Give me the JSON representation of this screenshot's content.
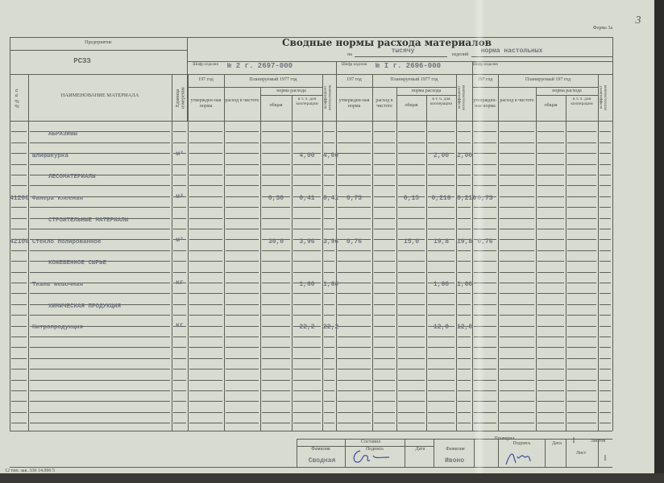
{
  "form_label": "Форма 3а",
  "page_mark": "3",
  "enterprise_label": "Предприятие",
  "enterprise": "РСЗЗ",
  "title": "Сводные нормы расхода материалов",
  "per_label": "на",
  "per_value": "тысячу",
  "items_label": "изделий",
  "items_value": "норма настольных",
  "code_label": "Шифр изделия",
  "blocks": [
    {
      "code": "№ 2 г. 2697-000",
      "year_label": "197  год",
      "plan_label": "Планируемый 1977 год"
    },
    {
      "code": "№ I г. 2696-000",
      "year_label": "197  год",
      "plan_label": "Планируемый 1977 год"
    },
    {
      "code": "",
      "year_label": "197  год",
      "plan_label": "Планируемый 197  год"
    }
  ],
  "col_headers": {
    "num": "№№ п. п.",
    "name": "НАИМЕНОВАНИЕ МАТЕРИАЛА",
    "unit": "Единица измерения",
    "approved": "утвержден-ная норма",
    "net": "расход в чистоте",
    "norm": "норма расхода",
    "total": "общая",
    "incl": "в т. ч. для кооперации",
    "coef": "коэффициент использования"
  },
  "rows": [
    {
      "num": "",
      "name": "АБРАЗИВЫ",
      "section": true,
      "unit": "",
      "v": [
        "",
        "",
        "",
        "",
        "",
        "",
        "",
        "",
        "",
        ""
      ]
    },
    {
      "num": "",
      "name": "Шлифшкурка",
      "section": false,
      "unit": "м²",
      "v": [
        "",
        "",
        "4,00",
        "4,00",
        "",
        "",
        "",
        "2,00",
        "2,00",
        ""
      ]
    },
    {
      "num": "",
      "name": "ЛЕСОМАТЕРИАЛЫ",
      "section": true,
      "unit": "",
      "v": [
        "",
        "",
        "",
        "",
        "",
        "",
        "",
        "",
        "",
        ""
      ]
    },
    {
      "num": "41200",
      "name": "Фанера клееная",
      "section": false,
      "unit": "м³",
      "v": [
        "",
        "0,30",
        "0,41",
        "0,41",
        "0,73",
        "",
        "0,15",
        "0,216",
        "0,216",
        "0,73"
      ]
    },
    {
      "num": "",
      "name": "СТРОИТЕЛЬНЫЕ МАТЕРИАЛЫ",
      "section": true,
      "unit": "",
      "v": [
        "",
        "",
        "",
        "",
        "",
        "",
        "",
        "",
        "",
        ""
      ]
    },
    {
      "num": "42100",
      "name": "Стекло полированное",
      "section": false,
      "unit": "м²",
      "v": [
        "",
        "30,0",
        "3,96",
        "3,96",
        "0,76",
        "",
        "15,0",
        "19,8",
        "19,8",
        "0,76"
      ]
    },
    {
      "num": "",
      "name": "КОЖЕВЕННОЕ СЫРЬЕ",
      "section": true,
      "unit": "",
      "v": [
        "",
        "",
        "",
        "",
        "",
        "",
        "",
        "",
        "",
        ""
      ]
    },
    {
      "num": "",
      "name": "Ткань мешочная",
      "section": false,
      "unit": "кг",
      "v": [
        "",
        "",
        "1,60",
        "1,60",
        "",
        "",
        "",
        "1,60",
        "1,60",
        ""
      ]
    },
    {
      "num": "",
      "name": "ХИМИЧЕСКАЯ ПРОДУКЦИЯ",
      "section": true,
      "unit": "",
      "v": [
        "",
        "",
        "",
        "",
        "",
        "",
        "",
        "",
        "",
        ""
      ]
    },
    {
      "num": "",
      "name": "Нитропродукция",
      "section": false,
      "unit": "кг",
      "v": [
        "",
        "",
        "22,2",
        "22,2",
        "",
        "",
        "",
        "12,0",
        "12,0",
        ""
      ]
    }
  ],
  "footer": {
    "compiled": "Составил",
    "surname": "Фамилия",
    "signature": "Подпись",
    "date": "Дата",
    "compiled_name": "Сводная",
    "checked": "Проверил",
    "checked_surname": "Фамилия",
    "checked_signature": "Подпись",
    "checked_date": "Дата",
    "checked_name": "Ивоно",
    "sheets_count": "I",
    "sheets_label": "Листов",
    "sheet_label": "Лист",
    "sheet_num": "I",
    "print_info": "12 тип. зак. 330 14.000  5"
  }
}
